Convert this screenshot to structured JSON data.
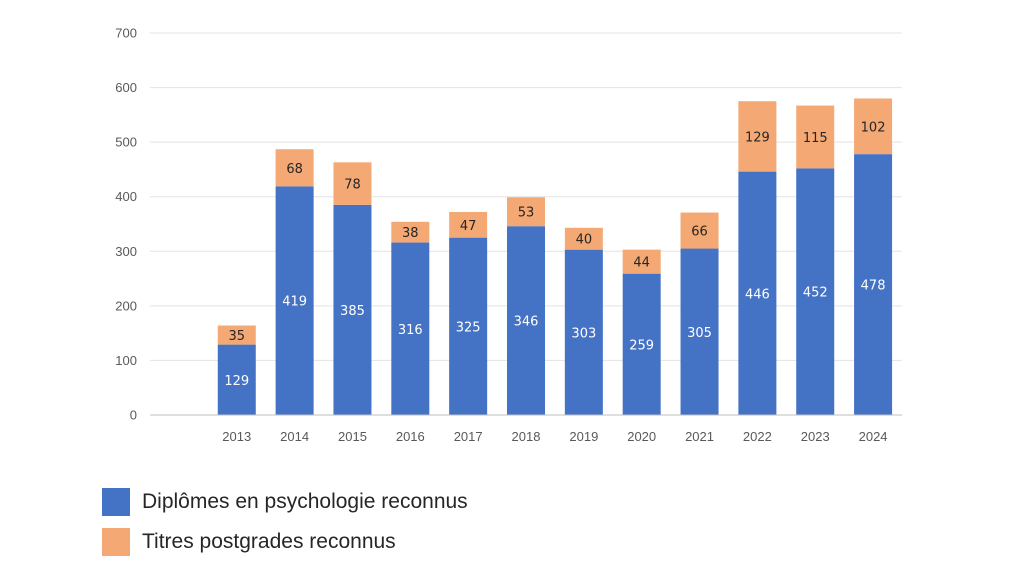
{
  "chart_data": {
    "type": "bar",
    "stacked": true,
    "categories": [
      "2013",
      "2014",
      "2015",
      "2016",
      "2017",
      "2018",
      "2019",
      "2020",
      "2021",
      "2022",
      "2023",
      "2024"
    ],
    "series": [
      {
        "name": "Diplômes en psychologie reconnus",
        "color": "#4472C4",
        "label_color": "#ffffff",
        "values": [
          129,
          419,
          385,
          316,
          325,
          346,
          303,
          259,
          305,
          446,
          452,
          478
        ]
      },
      {
        "name": "Titres postgrades reconnus",
        "color": "#F4A873",
        "label_color": "#262626",
        "values": [
          35,
          68,
          78,
          38,
          47,
          53,
          40,
          44,
          66,
          129,
          115,
          102
        ]
      }
    ],
    "ylim": [
      0,
      700
    ],
    "yticks": [
      "0",
      "100",
      "200",
      "300",
      "400",
      "500",
      "600",
      "700"
    ],
    "ytick_values": [
      0,
      100,
      200,
      300,
      400,
      500,
      600,
      700
    ],
    "grid": true,
    "legend_position": "bottom-left",
    "title": "",
    "xlabel": "",
    "ylabel": ""
  }
}
